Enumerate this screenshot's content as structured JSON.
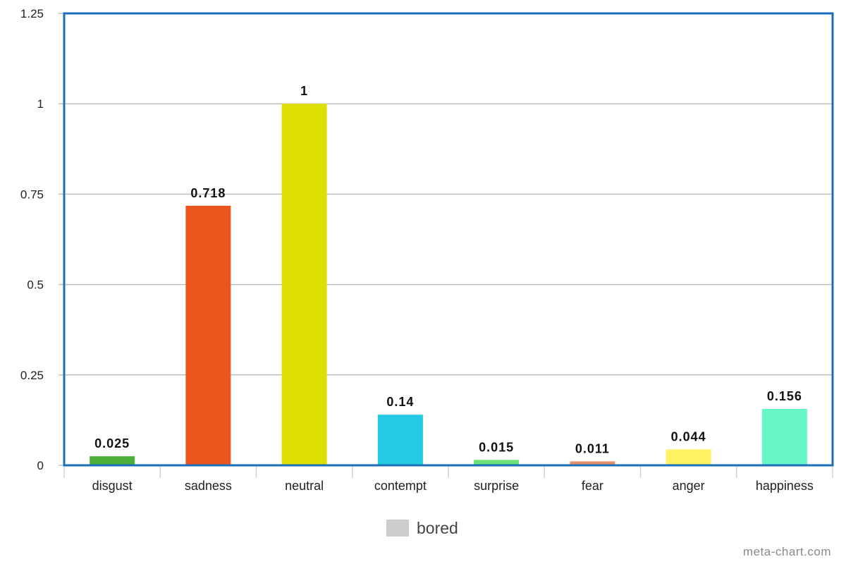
{
  "chart_data": {
    "type": "bar",
    "categories": [
      "disgust",
      "sadness",
      "neutral",
      "contempt",
      "surprise",
      "fear",
      "anger",
      "happiness"
    ],
    "series": [
      {
        "name": "bored",
        "values": [
          0.025,
          0.718,
          1,
          0.14,
          0.015,
          0.011,
          0.044,
          0.156
        ],
        "value_labels": [
          "0.025",
          "0.718",
          "1",
          "0.14",
          "0.015",
          "0.011",
          "0.044",
          "0.156"
        ],
        "colors": [
          "#4caf3a",
          "#eb561e",
          "#dde000",
          "#24c9e3",
          "#6ee07a",
          "#e7906e",
          "#fff263",
          "#68f7c6"
        ]
      }
    ],
    "ylim": [
      0,
      1.25
    ],
    "yticks": [
      "0",
      "0.25",
      "0.5",
      "0.75",
      "1",
      "1.25"
    ],
    "grid": true,
    "legend_position": "bottom-center",
    "frame_color": "#1b6fb8",
    "legend_swatch_color": "#cccccc"
  },
  "legend": {
    "label": "bored"
  },
  "credit": "meta-chart.com"
}
